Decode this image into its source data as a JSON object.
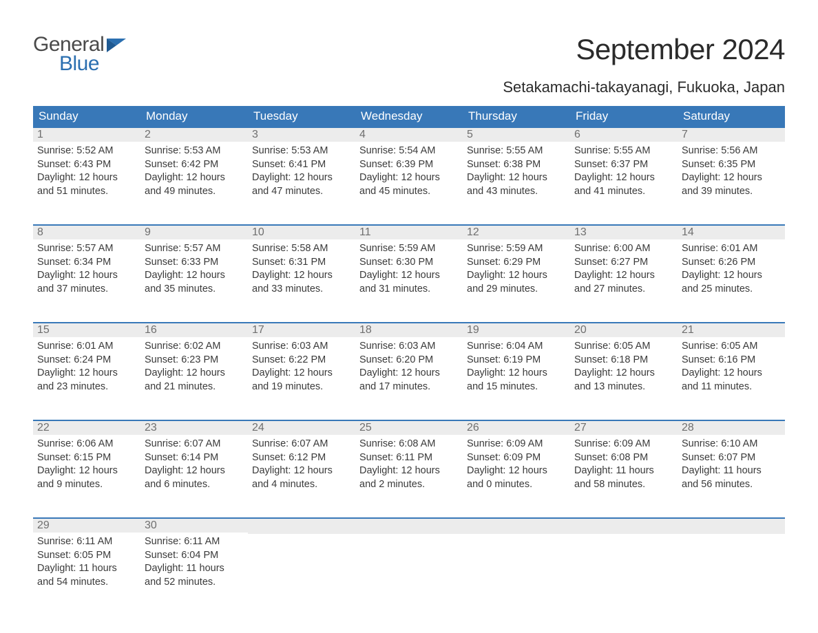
{
  "logo": {
    "line1": "General",
    "line2": "Blue",
    "flag_color": "#2b6fb0",
    "text_gray": "#4a4a4a"
  },
  "title": "September 2024",
  "location": "Setakamachi-takayanagi, Fukuoka, Japan",
  "colors": {
    "header_bg": "#3878b8",
    "header_text": "#ffffff",
    "daynum_bg": "#ececec",
    "daynum_text": "#6f6f6f",
    "body_text": "#3a3a3a",
    "rule": "#3878b8"
  },
  "weekdays": [
    "Sunday",
    "Monday",
    "Tuesday",
    "Wednesday",
    "Thursday",
    "Friday",
    "Saturday"
  ],
  "weeks": [
    [
      {
        "n": "1",
        "sr": "5:52 AM",
        "ss": "6:43 PM",
        "dl": "12 hours and 51 minutes."
      },
      {
        "n": "2",
        "sr": "5:53 AM",
        "ss": "6:42 PM",
        "dl": "12 hours and 49 minutes."
      },
      {
        "n": "3",
        "sr": "5:53 AM",
        "ss": "6:41 PM",
        "dl": "12 hours and 47 minutes."
      },
      {
        "n": "4",
        "sr": "5:54 AM",
        "ss": "6:39 PM",
        "dl": "12 hours and 45 minutes."
      },
      {
        "n": "5",
        "sr": "5:55 AM",
        "ss": "6:38 PM",
        "dl": "12 hours and 43 minutes."
      },
      {
        "n": "6",
        "sr": "5:55 AM",
        "ss": "6:37 PM",
        "dl": "12 hours and 41 minutes."
      },
      {
        "n": "7",
        "sr": "5:56 AM",
        "ss": "6:35 PM",
        "dl": "12 hours and 39 minutes."
      }
    ],
    [
      {
        "n": "8",
        "sr": "5:57 AM",
        "ss": "6:34 PM",
        "dl": "12 hours and 37 minutes."
      },
      {
        "n": "9",
        "sr": "5:57 AM",
        "ss": "6:33 PM",
        "dl": "12 hours and 35 minutes."
      },
      {
        "n": "10",
        "sr": "5:58 AM",
        "ss": "6:31 PM",
        "dl": "12 hours and 33 minutes."
      },
      {
        "n": "11",
        "sr": "5:59 AM",
        "ss": "6:30 PM",
        "dl": "12 hours and 31 minutes."
      },
      {
        "n": "12",
        "sr": "5:59 AM",
        "ss": "6:29 PM",
        "dl": "12 hours and 29 minutes."
      },
      {
        "n": "13",
        "sr": "6:00 AM",
        "ss": "6:27 PM",
        "dl": "12 hours and 27 minutes."
      },
      {
        "n": "14",
        "sr": "6:01 AM",
        "ss": "6:26 PM",
        "dl": "12 hours and 25 minutes."
      }
    ],
    [
      {
        "n": "15",
        "sr": "6:01 AM",
        "ss": "6:24 PM",
        "dl": "12 hours and 23 minutes."
      },
      {
        "n": "16",
        "sr": "6:02 AM",
        "ss": "6:23 PM",
        "dl": "12 hours and 21 minutes."
      },
      {
        "n": "17",
        "sr": "6:03 AM",
        "ss": "6:22 PM",
        "dl": "12 hours and 19 minutes."
      },
      {
        "n": "18",
        "sr": "6:03 AM",
        "ss": "6:20 PM",
        "dl": "12 hours and 17 minutes."
      },
      {
        "n": "19",
        "sr": "6:04 AM",
        "ss": "6:19 PM",
        "dl": "12 hours and 15 minutes."
      },
      {
        "n": "20",
        "sr": "6:05 AM",
        "ss": "6:18 PM",
        "dl": "12 hours and 13 minutes."
      },
      {
        "n": "21",
        "sr": "6:05 AM",
        "ss": "6:16 PM",
        "dl": "12 hours and 11 minutes."
      }
    ],
    [
      {
        "n": "22",
        "sr": "6:06 AM",
        "ss": "6:15 PM",
        "dl": "12 hours and 9 minutes."
      },
      {
        "n": "23",
        "sr": "6:07 AM",
        "ss": "6:14 PM",
        "dl": "12 hours and 6 minutes."
      },
      {
        "n": "24",
        "sr": "6:07 AM",
        "ss": "6:12 PM",
        "dl": "12 hours and 4 minutes."
      },
      {
        "n": "25",
        "sr": "6:08 AM",
        "ss": "6:11 PM",
        "dl": "12 hours and 2 minutes."
      },
      {
        "n": "26",
        "sr": "6:09 AM",
        "ss": "6:09 PM",
        "dl": "12 hours and 0 minutes."
      },
      {
        "n": "27",
        "sr": "6:09 AM",
        "ss": "6:08 PM",
        "dl": "11 hours and 58 minutes."
      },
      {
        "n": "28",
        "sr": "6:10 AM",
        "ss": "6:07 PM",
        "dl": "11 hours and 56 minutes."
      }
    ],
    [
      {
        "n": "29",
        "sr": "6:11 AM",
        "ss": "6:05 PM",
        "dl": "11 hours and 54 minutes."
      },
      {
        "n": "30",
        "sr": "6:11 AM",
        "ss": "6:04 PM",
        "dl": "11 hours and 52 minutes."
      },
      null,
      null,
      null,
      null,
      null
    ]
  ],
  "labels": {
    "sunrise": "Sunrise:",
    "sunset": "Sunset:",
    "daylight": "Daylight:"
  }
}
